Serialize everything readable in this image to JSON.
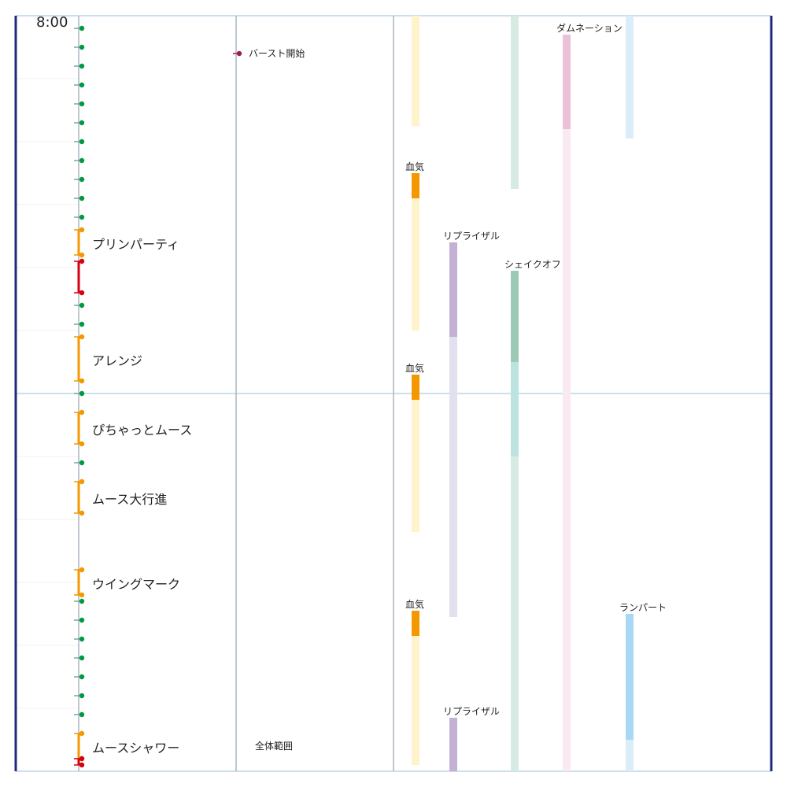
{
  "header": {
    "time": "8:00"
  },
  "scope_label": "全体範囲",
  "colors": {
    "frame": "#1f2a7a",
    "grid": "#b9d6ea",
    "subgrid": "#eef2f5",
    "divider": "#aab6c0",
    "auto_attack": "#009944",
    "boss_skill": "#f39800",
    "tankbuster": "#d7000f",
    "player_event": "#9b1b5a"
  },
  "timeline": {
    "marks": [
      {
        "type": "auto",
        "t": 0.4
      },
      {
        "type": "auto",
        "t": 1.0
      },
      {
        "type": "auto",
        "t": 1.6
      },
      {
        "type": "auto",
        "t": 2.2
      },
      {
        "type": "auto",
        "t": 2.8
      },
      {
        "type": "auto",
        "t": 3.4
      },
      {
        "type": "auto",
        "t": 4.0
      },
      {
        "type": "auto",
        "t": 4.6
      },
      {
        "type": "auto",
        "t": 5.2
      },
      {
        "type": "auto",
        "t": 5.8
      },
      {
        "type": "auto",
        "t": 6.4
      },
      {
        "type": "auto",
        "t": 9.2
      },
      {
        "type": "auto",
        "t": 9.8
      },
      {
        "type": "auto",
        "t": 12.0
      },
      {
        "type": "auto",
        "t": 14.2
      },
      {
        "type": "auto",
        "t": 18.6
      },
      {
        "type": "auto",
        "t": 19.2
      },
      {
        "type": "auto",
        "t": 19.8
      },
      {
        "type": "auto",
        "t": 20.4
      },
      {
        "type": "auto",
        "t": 21.0
      },
      {
        "type": "auto",
        "t": 21.6
      },
      {
        "type": "auto",
        "t": 22.2
      }
    ],
    "skills": [
      {
        "label": "プリンパーティ",
        "start": 6.8,
        "end": 7.6,
        "type": "skill"
      },
      {
        "label": "",
        "start": 7.8,
        "end": 8.8,
        "type": "buster"
      },
      {
        "label": "アレンジ",
        "start": 10.2,
        "end": 11.6,
        "type": "skill"
      },
      {
        "label": "ぴちゃっとムース",
        "start": 12.6,
        "end": 13.6,
        "type": "skill"
      },
      {
        "label": "ムース大行進",
        "start": 14.8,
        "end": 15.8,
        "type": "skill"
      },
      {
        "label": "ウイングマーク",
        "start": 17.6,
        "end": 18.4,
        "type": "skill"
      },
      {
        "label": "ムースシャワー",
        "start": 22.8,
        "end": 23.6,
        "type": "skill"
      },
      {
        "label": "",
        "start": 23.6,
        "end": 23.8,
        "type": "buster"
      }
    ],
    "player_events": [
      {
        "label": "バースト開始",
        "t": 1.2
      }
    ]
  },
  "mitigations": [
    {
      "label": "",
      "col": 0,
      "start": 0.0,
      "active": 0.0,
      "end": 3.5,
      "color": "#f39800",
      "fade": "#fff3cc"
    },
    {
      "label": "血気",
      "col": 0,
      "start": 5.0,
      "active": 5.8,
      "end": 10.0,
      "color": "#f39800",
      "fade": "#fff3cc"
    },
    {
      "label": "血気",
      "col": 0,
      "start": 11.4,
      "active": 12.2,
      "end": 16.4,
      "color": "#f39800",
      "fade": "#fff3cc"
    },
    {
      "label": "血気",
      "col": 0,
      "start": 18.9,
      "active": 19.7,
      "end": 23.8,
      "color": "#f39800",
      "fade": "#fff3cc"
    },
    {
      "label": "リプライザル",
      "col": 1,
      "start": 7.2,
      "active": 10.2,
      "end": 19.1,
      "color": "#c5b0d5",
      "fade": "#e2e0ef"
    },
    {
      "label": "リプライザル",
      "col": 1,
      "start": 22.3,
      "active": 24.0,
      "end": 24.0,
      "color": "#c5b0d5",
      "fade": "#e2e0ef"
    },
    {
      "label": "",
      "col": 2,
      "start": 0.0,
      "active": 0.0,
      "end": 5.5,
      "color": "#9ccab5",
      "fade": "#d6ece3"
    },
    {
      "label": "シェイクオフ",
      "col": 2,
      "start": 8.1,
      "active": 11.0,
      "end": 14.0,
      "color": "#9ccab5",
      "fade": "#bde3e0"
    },
    {
      "label": "",
      "col": 2,
      "start": 14.0,
      "active": 14.0,
      "end": 24.0,
      "color": "#9ccab5",
      "fade": "#d6ece3"
    },
    {
      "label": "ダムネーション",
      "col": 3,
      "start": 0.6,
      "active": 3.6,
      "end": 24.0,
      "color": "#ecc0d6",
      "fade": "#fbe9f1"
    },
    {
      "label": "",
      "col": 4,
      "start": 0.0,
      "active": 0.0,
      "end": 3.9,
      "color": "#a9d8f5",
      "fade": "#dcedfa"
    },
    {
      "label": "ランパート",
      "col": 4,
      "start": 19.0,
      "active": 23.0,
      "end": 24.0,
      "color": "#a9d8f5",
      "fade": "#dcedfa"
    }
  ]
}
